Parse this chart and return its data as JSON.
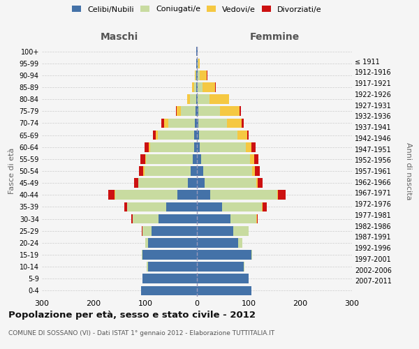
{
  "age_groups": [
    "0-4",
    "5-9",
    "10-14",
    "15-19",
    "20-24",
    "25-29",
    "30-34",
    "35-39",
    "40-44",
    "45-49",
    "50-54",
    "55-59",
    "60-64",
    "65-69",
    "70-74",
    "75-79",
    "80-84",
    "85-89",
    "90-94",
    "95-99",
    "100+"
  ],
  "birth_years": [
    "2007-2011",
    "2002-2006",
    "1997-2001",
    "1992-1996",
    "1987-1991",
    "1982-1986",
    "1977-1981",
    "1972-1976",
    "1967-1971",
    "1962-1966",
    "1957-1961",
    "1952-1956",
    "1947-1951",
    "1942-1946",
    "1937-1941",
    "1932-1936",
    "1927-1931",
    "1922-1926",
    "1917-1921",
    "1912-1916",
    "≤ 1911"
  ],
  "males": {
    "celibi": [
      108,
      105,
      95,
      105,
      95,
      88,
      75,
      60,
      38,
      18,
      12,
      8,
      6,
      6,
      4,
      3,
      2,
      2,
      1,
      1,
      1
    ],
    "coniugati": [
      0,
      0,
      2,
      2,
      5,
      18,
      50,
      75,
      120,
      95,
      90,
      90,
      85,
      70,
      52,
      28,
      12,
      4,
      2,
      1,
      0
    ],
    "vedovi": [
      0,
      0,
      0,
      0,
      0,
      0,
      0,
      0,
      1,
      1,
      2,
      2,
      2,
      4,
      8,
      8,
      5,
      3,
      1,
      0,
      0
    ],
    "divorziati": [
      0,
      0,
      0,
      0,
      0,
      1,
      2,
      5,
      12,
      8,
      8,
      10,
      8,
      5,
      5,
      2,
      0,
      0,
      0,
      0,
      0
    ]
  },
  "females": {
    "nubili": [
      105,
      100,
      90,
      105,
      80,
      70,
      65,
      48,
      25,
      15,
      12,
      8,
      5,
      4,
      3,
      3,
      2,
      1,
      1,
      1,
      1
    ],
    "coniugate": [
      0,
      0,
      2,
      2,
      8,
      30,
      50,
      78,
      130,
      100,
      95,
      95,
      90,
      75,
      55,
      42,
      22,
      10,
      4,
      2,
      0
    ],
    "vedove": [
      0,
      0,
      0,
      0,
      0,
      0,
      1,
      1,
      2,
      2,
      5,
      8,
      10,
      18,
      28,
      38,
      38,
      24,
      14,
      3,
      0
    ],
    "divorziate": [
      0,
      0,
      0,
      0,
      0,
      0,
      2,
      8,
      15,
      10,
      10,
      8,
      8,
      3,
      5,
      2,
      0,
      2,
      1,
      0,
      0
    ]
  },
  "colors": {
    "celibi_nubili": "#4472a8",
    "coniugati": "#c8dba0",
    "vedovi": "#f5c842",
    "divorziati": "#cc1111"
  },
  "title": "Popolazione per età, sesso e stato civile - 2012",
  "subtitle": "COMUNE DI SOSSANO (VI) - Dati ISTAT 1° gennaio 2012 - Elaborazione TUTTITALIA.IT",
  "xlabel_left": "Maschi",
  "xlabel_right": "Femmine",
  "ylabel_left": "Fasce di età",
  "ylabel_right": "Anni di nascita",
  "xlim": 300,
  "background_color": "#f5f5f5",
  "grid_color": "#cccccc"
}
